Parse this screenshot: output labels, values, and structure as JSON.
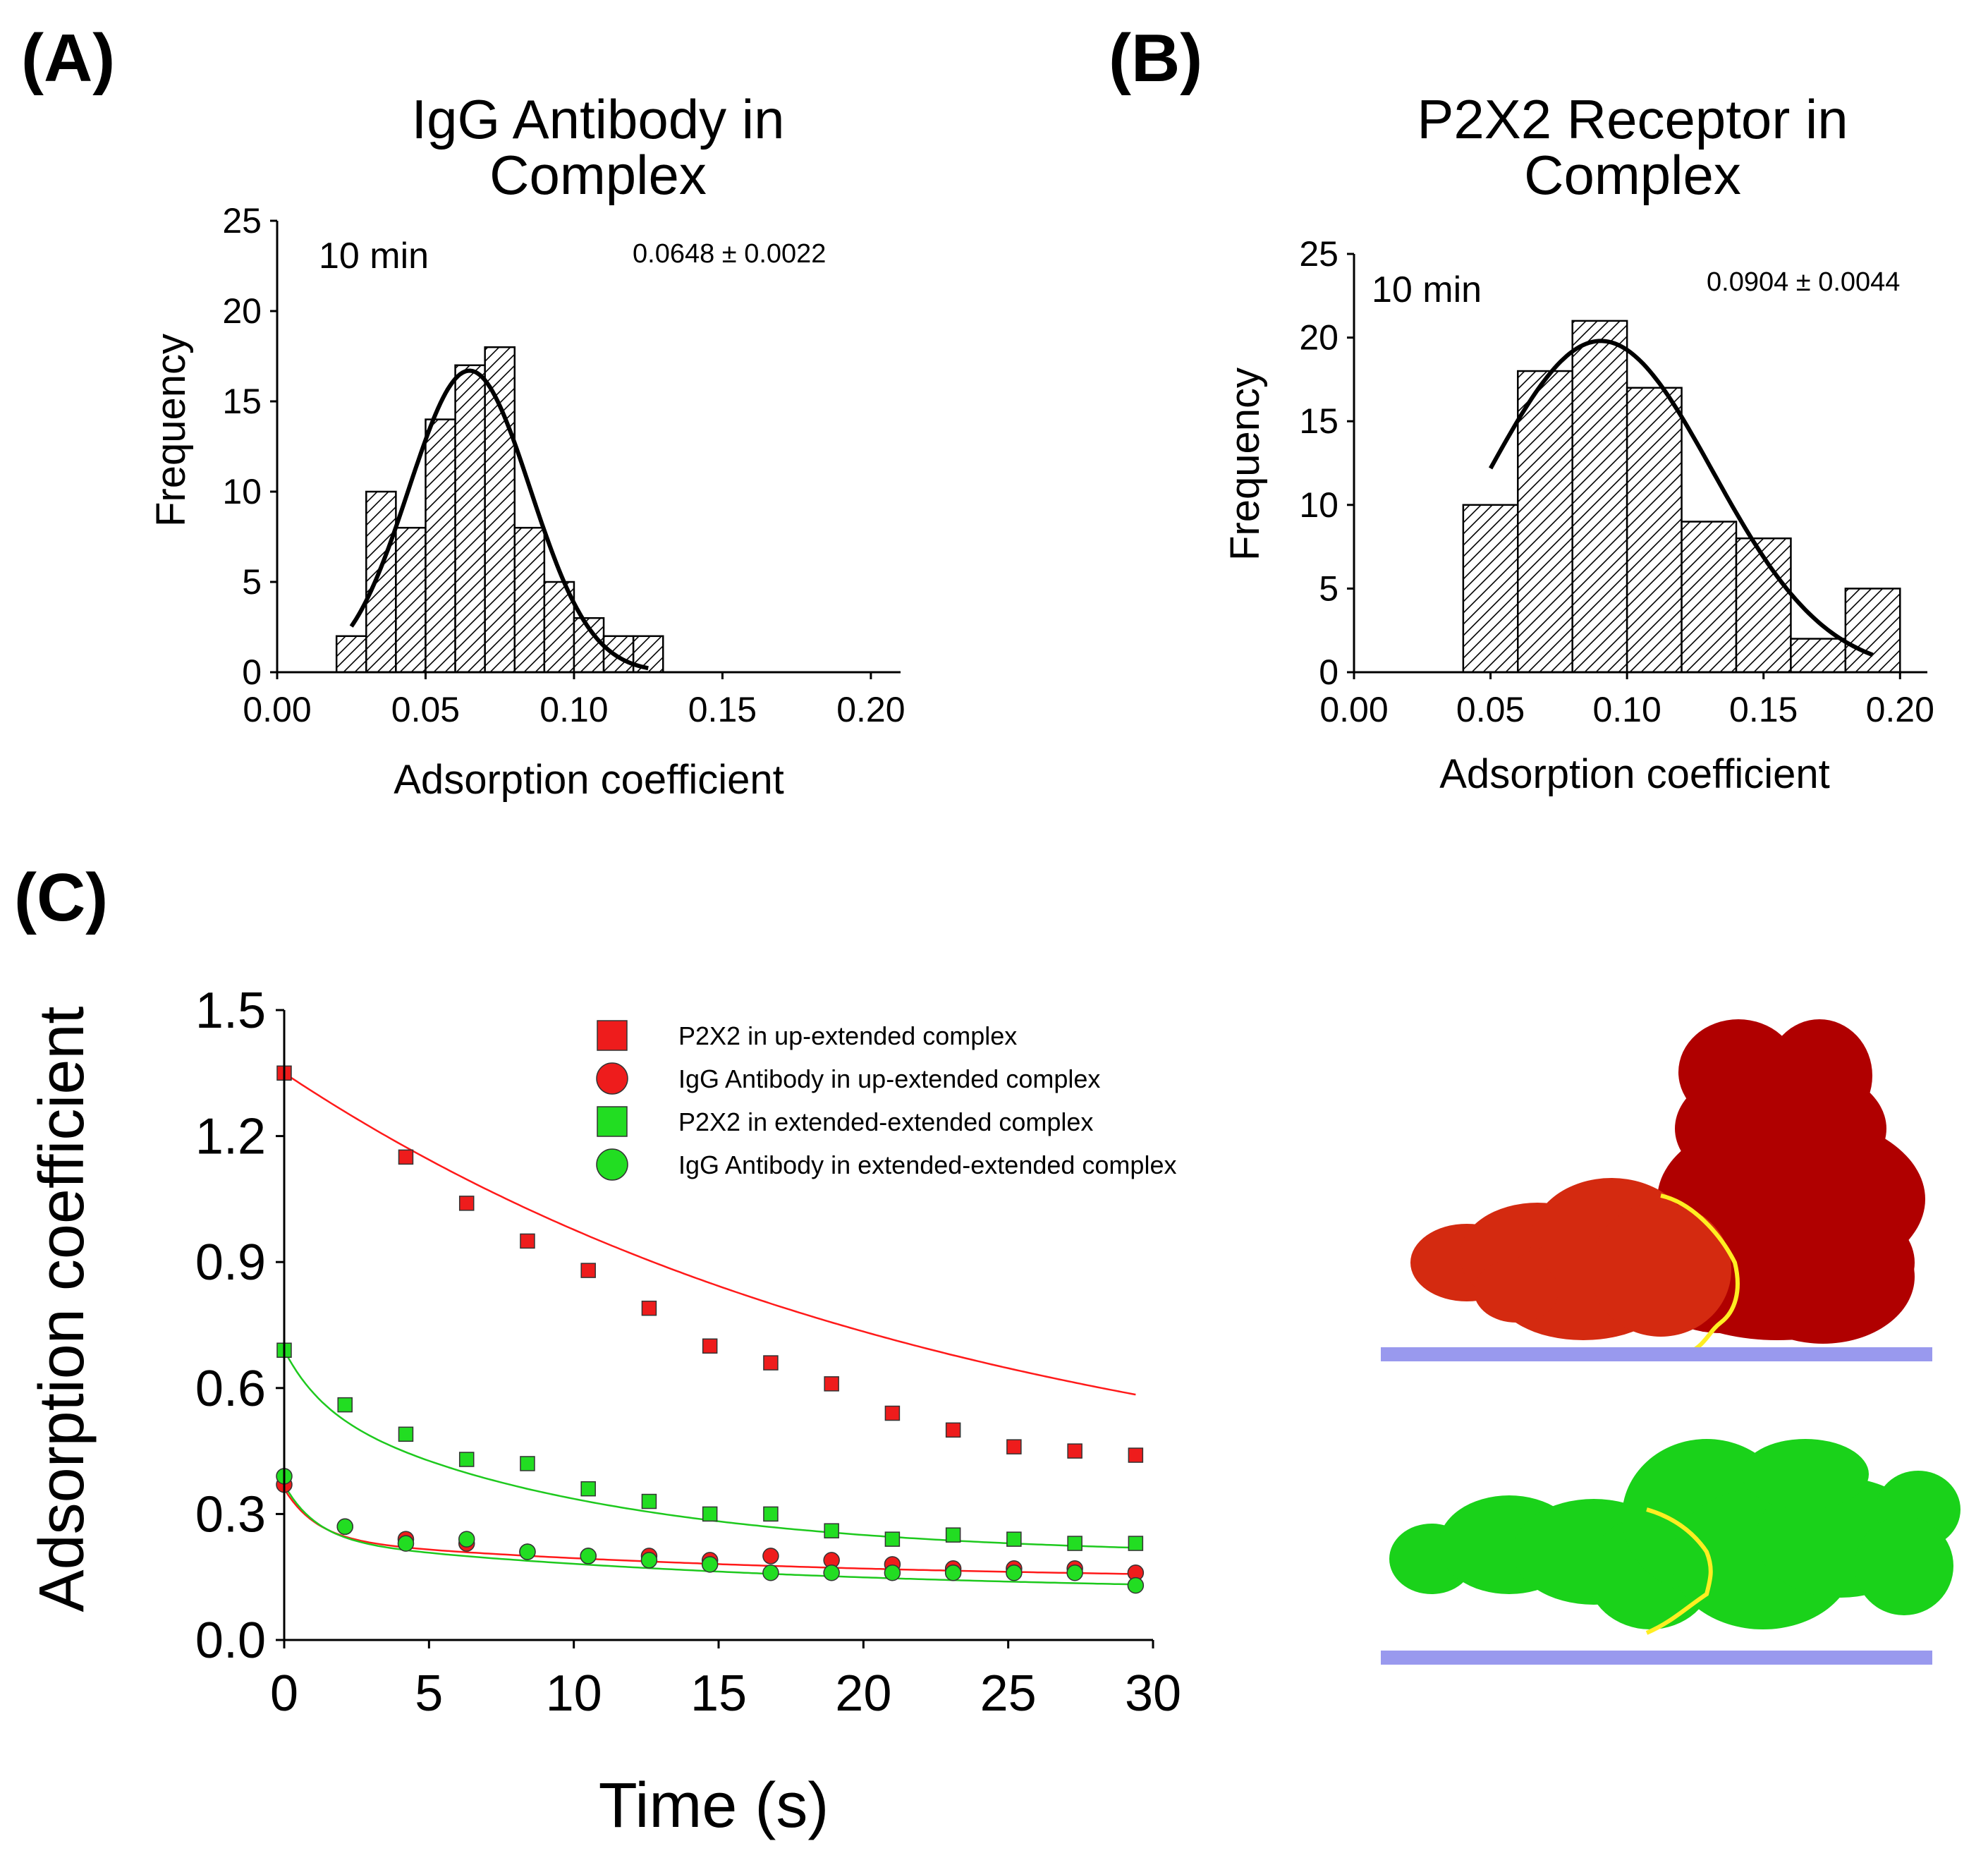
{
  "panels": {
    "a": {
      "label": "(A)",
      "title": [
        "IgG Antibody in",
        "Complex"
      ],
      "note": "10 min",
      "stat": "0.0648 ± 0.0022"
    },
    "b": {
      "label": "(B)",
      "title": [
        "P2X2 Receptor in",
        "Complex"
      ],
      "note": "10 min",
      "stat": "0.0904 ± 0.0044"
    },
    "c": {
      "label": "(C)"
    }
  },
  "colors": {
    "red": "#ee1c1c",
    "green": "#22dd22",
    "red_line": "#ff1a1a",
    "green_line": "#1ec91e",
    "dark_red": "#b00000",
    "substrate": "#9999ee",
    "boundary": "#ffee22"
  },
  "chart_data": [
    {
      "id": "a",
      "type": "bar",
      "title": "IgG Antibody in Complex",
      "xlabel": "Adsorption coefficient",
      "ylabel": "Frequency",
      "xlim": [
        0.0,
        0.21
      ],
      "ylim": [
        0,
        25
      ],
      "xticks": [
        0.0,
        0.05,
        0.1,
        0.15,
        0.2
      ],
      "xtick_labels": [
        "0.00",
        "0.05",
        "0.10",
        "0.15",
        "0.20"
      ],
      "yticks": [
        0,
        5,
        10,
        15,
        20,
        25
      ],
      "ytick_labels": [
        "0",
        "5",
        "10",
        "15",
        "20",
        "25"
      ],
      "bin_width": 0.01,
      "bin_starts": [
        0.02,
        0.03,
        0.04,
        0.05,
        0.06,
        0.07,
        0.08,
        0.09,
        0.1,
        0.11,
        0.12
      ],
      "values": [
        2,
        10,
        8,
        14,
        17,
        18,
        8,
        5,
        3,
        2,
        2
      ],
      "fit": {
        "type": "gaussian",
        "amplitude": 16.7,
        "mean": 0.0648,
        "sd": 0.0205,
        "x_range": [
          0.025,
          0.125
        ]
      }
    },
    {
      "id": "b",
      "type": "bar",
      "title": "P2X2 Receptor in Complex",
      "xlabel": "Adsorption coefficient",
      "ylabel": "Frequency",
      "xlim": [
        0.0,
        0.21
      ],
      "ylim": [
        0,
        25
      ],
      "xticks": [
        0.0,
        0.05,
        0.1,
        0.15,
        0.2
      ],
      "xtick_labels": [
        "0.00",
        "0.05",
        "0.10",
        "0.15",
        "0.20"
      ],
      "yticks": [
        0,
        5,
        10,
        15,
        20,
        25
      ],
      "ytick_labels": [
        "0",
        "5",
        "10",
        "15",
        "20",
        "25"
      ],
      "bin_width": 0.02,
      "bin_starts": [
        0.04,
        0.06,
        0.08,
        0.1,
        0.12,
        0.14,
        0.16,
        0.18
      ],
      "values": [
        10,
        18,
        21,
        17,
        9,
        8,
        2,
        5
      ],
      "fit": {
        "type": "gaussian",
        "amplitude": 19.8,
        "mean": 0.0904,
        "sd": 0.041,
        "x_range": [
          0.05,
          0.19
        ]
      }
    },
    {
      "id": "c",
      "type": "scatter",
      "xlabel": "Time (s)",
      "ylabel": "Adsorption coefficient",
      "xlim": [
        0,
        30
      ],
      "ylim": [
        0.0,
        1.5
      ],
      "xticks": [
        0,
        5,
        10,
        15,
        20,
        25,
        30
      ],
      "xtick_labels": [
        "0",
        "5",
        "10",
        "15",
        "20",
        "25",
        "30"
      ],
      "yticks": [
        0.0,
        0.3,
        0.6,
        0.9,
        1.2,
        1.5
      ],
      "ytick_labels": [
        "0.0",
        "0.3",
        "0.6",
        "0.9",
        "1.2",
        "1.5"
      ],
      "series": [
        {
          "name": "P2X2 in up-extended complex",
          "marker": "square",
          "color": "red",
          "x": [
            0,
            4.2,
            6.3,
            8.4,
            10.5,
            12.6,
            14.7,
            16.8,
            18.9,
            21.0,
            23.1,
            25.2,
            27.3,
            29.4
          ],
          "y": [
            1.35,
            1.15,
            1.04,
            0.95,
            0.88,
            0.79,
            0.7,
            0.66,
            0.61,
            0.54,
            0.5,
            0.46,
            0.45,
            0.44
          ],
          "fit": {
            "type": "exp",
            "y0": 0.283,
            "a": 1.067,
            "k": 0.043
          }
        },
        {
          "name": "IgG Antibody in up-extended complex",
          "marker": "circle",
          "color": "red",
          "x": [
            0,
            2.1,
            4.2,
            6.3,
            8.4,
            10.5,
            12.6,
            14.7,
            16.8,
            18.9,
            21.0,
            23.1,
            25.2,
            27.3,
            29.4
          ],
          "y": [
            0.37,
            0.27,
            0.24,
            0.23,
            0.21,
            0.2,
            0.2,
            0.19,
            0.2,
            0.19,
            0.18,
            0.17,
            0.17,
            0.17,
            0.16
          ],
          "fit": {
            "type": "biexp",
            "y0": 0.14,
            "a1": 0.12,
            "k1": 0.9,
            "a2": 0.1,
            "k2": 0.06
          }
        },
        {
          "name": "P2X2 in extended-extended complex",
          "marker": "square",
          "color": "green",
          "x": [
            0,
            2.1,
            4.2,
            6.3,
            8.4,
            10.5,
            12.6,
            14.7,
            16.8,
            18.9,
            21.0,
            23.1,
            25.2,
            27.3,
            29.4
          ],
          "y": [
            0.69,
            0.56,
            0.49,
            0.43,
            0.42,
            0.36,
            0.33,
            0.3,
            0.3,
            0.26,
            0.24,
            0.25,
            0.24,
            0.23,
            0.23
          ],
          "fit": {
            "type": "biexp",
            "y0": 0.2,
            "a1": 0.12,
            "k1": 0.8,
            "a2": 0.37,
            "k2": 0.1
          }
        },
        {
          "name": "IgG Antibody in extended-extended complex",
          "marker": "circle",
          "color": "green",
          "x": [
            0,
            2.1,
            4.2,
            6.3,
            8.4,
            10.5,
            12.6,
            14.7,
            16.8,
            18.9,
            21.0,
            23.1,
            25.2,
            27.3,
            29.4
          ],
          "y": [
            0.39,
            0.27,
            0.23,
            0.24,
            0.21,
            0.2,
            0.19,
            0.18,
            0.16,
            0.16,
            0.16,
            0.16,
            0.16,
            0.16,
            0.13
          ],
          "fit": {
            "type": "biexp",
            "y0": 0.11,
            "a1": 0.13,
            "k1": 0.9,
            "a2": 0.13,
            "k2": 0.06
          }
        }
      ]
    }
  ]
}
